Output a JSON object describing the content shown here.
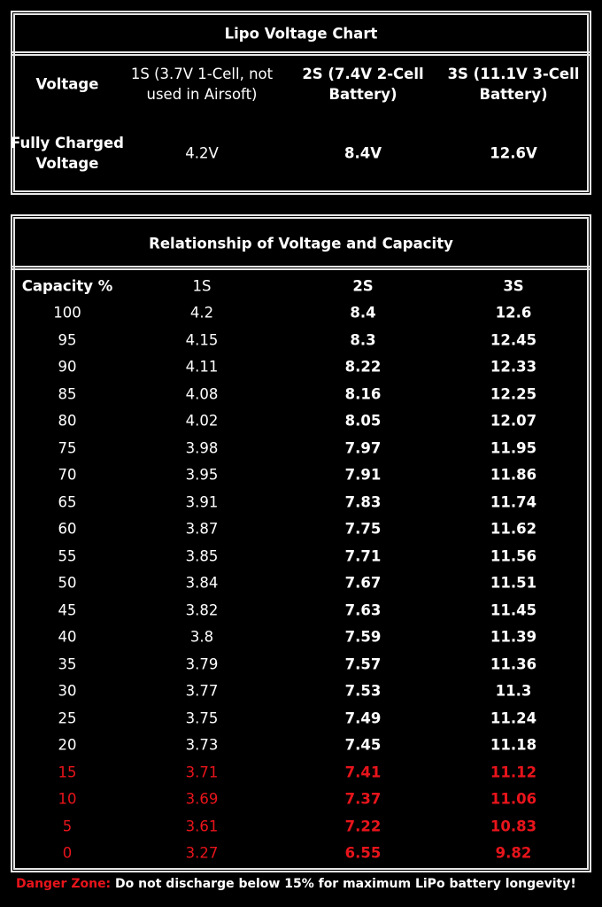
{
  "voltage_chart": {
    "title": "Lipo Voltage Chart",
    "header": [
      "Voltage",
      "1S (3.7V 1-Cell, not used in Airsoft)",
      "2S (7.4V 2-Cell Battery)",
      "3S (11.1V 3-Cell Battery)"
    ],
    "row": [
      "Fully Charged Voltage",
      "4.2V",
      "8.4V",
      "12.6V"
    ]
  },
  "capacity_table": {
    "title": "Relationship of Voltage and Capacity",
    "header": [
      "Capacity %",
      "1S",
      "2S",
      "3S"
    ],
    "rows": [
      [
        "100",
        "4.2",
        "8.4",
        "12.6"
      ],
      [
        "95",
        "4.15",
        "8.3",
        "12.45"
      ],
      [
        "90",
        "4.11",
        "8.22",
        "12.33"
      ],
      [
        "85",
        "4.08",
        "8.16",
        "12.25"
      ],
      [
        "80",
        "4.02",
        "8.05",
        "12.07"
      ],
      [
        "75",
        "3.98",
        "7.97",
        "11.95"
      ],
      [
        "70",
        "3.95",
        "7.91",
        "11.86"
      ],
      [
        "65",
        "3.91",
        "7.83",
        "11.74"
      ],
      [
        "60",
        "3.87",
        "7.75",
        "11.62"
      ],
      [
        "55",
        "3.85",
        "7.71",
        "11.56"
      ],
      [
        "50",
        "3.84",
        "7.67",
        "11.51"
      ],
      [
        "45",
        "3.82",
        "7.63",
        "11.45"
      ],
      [
        "40",
        "3.8",
        "7.59",
        "11.39"
      ],
      [
        "35",
        "3.79",
        "7.57",
        "11.36"
      ],
      [
        "30",
        "3.77",
        "7.53",
        "11.3"
      ],
      [
        "25",
        "3.75",
        "7.49",
        "11.24"
      ],
      [
        "20",
        "3.73",
        "7.45",
        "11.18"
      ]
    ],
    "danger_rows": [
      [
        "15",
        "3.71",
        "7.41",
        "11.12"
      ],
      [
        "10",
        "3.69",
        "7.37",
        "11.06"
      ],
      [
        "5",
        "3.61",
        "7.22",
        "10.83"
      ],
      [
        "0",
        "3.27",
        "6.55",
        "9.82"
      ]
    ],
    "danger_color": "#e8141b"
  },
  "footer": {
    "label": "Danger Zone:",
    "text": "Do not discharge below 15% for maximum LiPo battery longevity!"
  }
}
